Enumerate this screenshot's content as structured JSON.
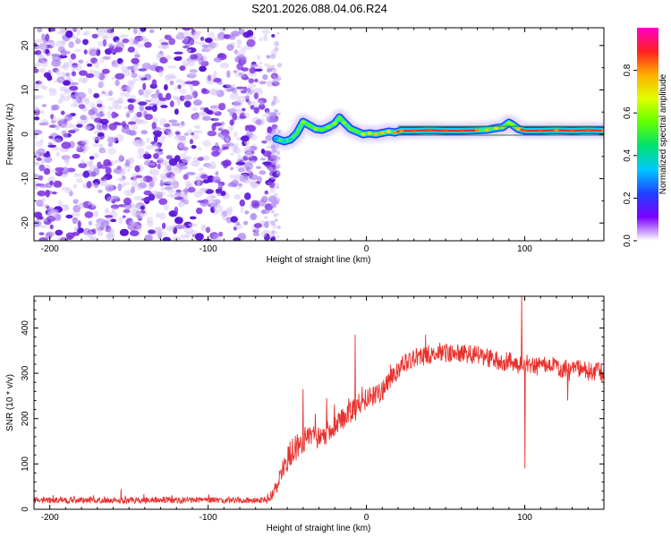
{
  "title": "S201.2026.088.04.06.R24",
  "colors": {
    "snr_line": "#e8302c",
    "track_core": "#e8302c",
    "noise_violet": "#7b2fe0"
  },
  "colormap": [
    "#ffffff",
    "#7a00ff",
    "#2040ff",
    "#00c8ff",
    "#00e070",
    "#60ff00",
    "#e0ff00",
    "#ffb000",
    "#ff2020",
    "#ff00c8"
  ],
  "chart_data": [
    {
      "type": "heatmap",
      "title": "S201.2026.088.04.06.R24",
      "xlabel": "Height of straight line (km)",
      "ylabel": "Frequency (Hz)",
      "xlim": [
        -210,
        150
      ],
      "ylim": [
        -24,
        24
      ],
      "xticks": [
        -200,
        -100,
        0,
        100
      ],
      "yticks": [
        -20,
        -10,
        0,
        10,
        20
      ],
      "noise_region_x": [
        -210,
        -57
      ],
      "colorbar": {
        "label": "Normalized spectral amplitude",
        "range": [
          0,
          1
        ],
        "ticks": [
          0.0,
          0.2,
          0.4,
          0.6,
          0.8
        ]
      },
      "track": {
        "x": [
          -57,
          -52,
          -48,
          -44,
          -40,
          -36,
          -32,
          -28,
          -24,
          -20,
          -17,
          -14,
          -10,
          -6,
          -2,
          2,
          6,
          10,
          14,
          18,
          22,
          30,
          40,
          50,
          60,
          70,
          76,
          82,
          86,
          90,
          92,
          96,
          100,
          110,
          120,
          130,
          140,
          150
        ],
        "freq": [
          -1.0,
          -1.6,
          -1.2,
          0.2,
          2.8,
          2.0,
          1.2,
          1.0,
          1.6,
          2.4,
          3.8,
          2.6,
          1.2,
          0.6,
          0.0,
          0.2,
          0.0,
          0.3,
          0.6,
          0.4,
          0.8,
          0.8,
          0.9,
          0.8,
          0.8,
          0.9,
          1.0,
          1.4,
          1.6,
          2.6,
          2.2,
          1.2,
          0.8,
          0.8,
          0.9,
          0.8,
          0.9,
          0.8
        ],
        "amp": [
          0.3,
          0.35,
          0.4,
          0.5,
          0.6,
          0.55,
          0.6,
          0.55,
          0.6,
          0.6,
          0.55,
          0.6,
          0.55,
          0.55,
          0.65,
          0.7,
          0.75,
          0.75,
          0.7,
          0.8,
          0.8,
          0.85,
          0.85,
          0.85,
          0.85,
          0.8,
          0.75,
          0.7,
          0.75,
          0.6,
          0.6,
          0.75,
          0.85,
          0.85,
          0.8,
          0.85,
          0.85,
          0.8
        ]
      }
    },
    {
      "type": "line",
      "xlabel": "Height of straight line (km)",
      "ylabel": "SNR (10 * v/v)",
      "xlim": [
        -210,
        150
      ],
      "ylim": [
        0,
        470
      ],
      "xticks": [
        -200,
        -100,
        0,
        100
      ],
      "yticks": [
        0,
        100,
        200,
        300,
        400
      ],
      "series": [
        {
          "name": "SNR",
          "x": [
            -210,
            -150,
            -100,
            -62,
            -56,
            -50,
            -45,
            -40,
            -35,
            -30,
            -25,
            -20,
            -15,
            -10,
            -5,
            0,
            5,
            10,
            15,
            20,
            25,
            30,
            40,
            50,
            60,
            70,
            80,
            85,
            90,
            95,
            98,
            100,
            105,
            110,
            120,
            130,
            140,
            150
          ],
          "base": [
            20,
            20,
            20,
            20,
            55,
            110,
            140,
            150,
            150,
            160,
            170,
            185,
            200,
            215,
            225,
            245,
            250,
            260,
            285,
            310,
            325,
            335,
            340,
            345,
            345,
            340,
            330,
            325,
            325,
            320,
            320,
            325,
            320,
            315,
            310,
            310,
            305,
            300
          ],
          "noise_amplitude": [
            7,
            7,
            7,
            7,
            20,
            30,
            35,
            35,
            30,
            28,
            25,
            25,
            25,
            25,
            25,
            25,
            22,
            22,
            22,
            22,
            22,
            22,
            22,
            22,
            22,
            22,
            22,
            22,
            22,
            22,
            22,
            22,
            22,
            22,
            22,
            22,
            22,
            22
          ],
          "peaks": [
            [
              -155,
              45
            ],
            [
              -40,
              265
            ],
            [
              -25,
              245
            ],
            [
              -7,
              385
            ],
            [
              98,
              470
            ],
            [
              100,
              90
            ],
            [
              127,
              240
            ]
          ]
        }
      ]
    }
  ]
}
